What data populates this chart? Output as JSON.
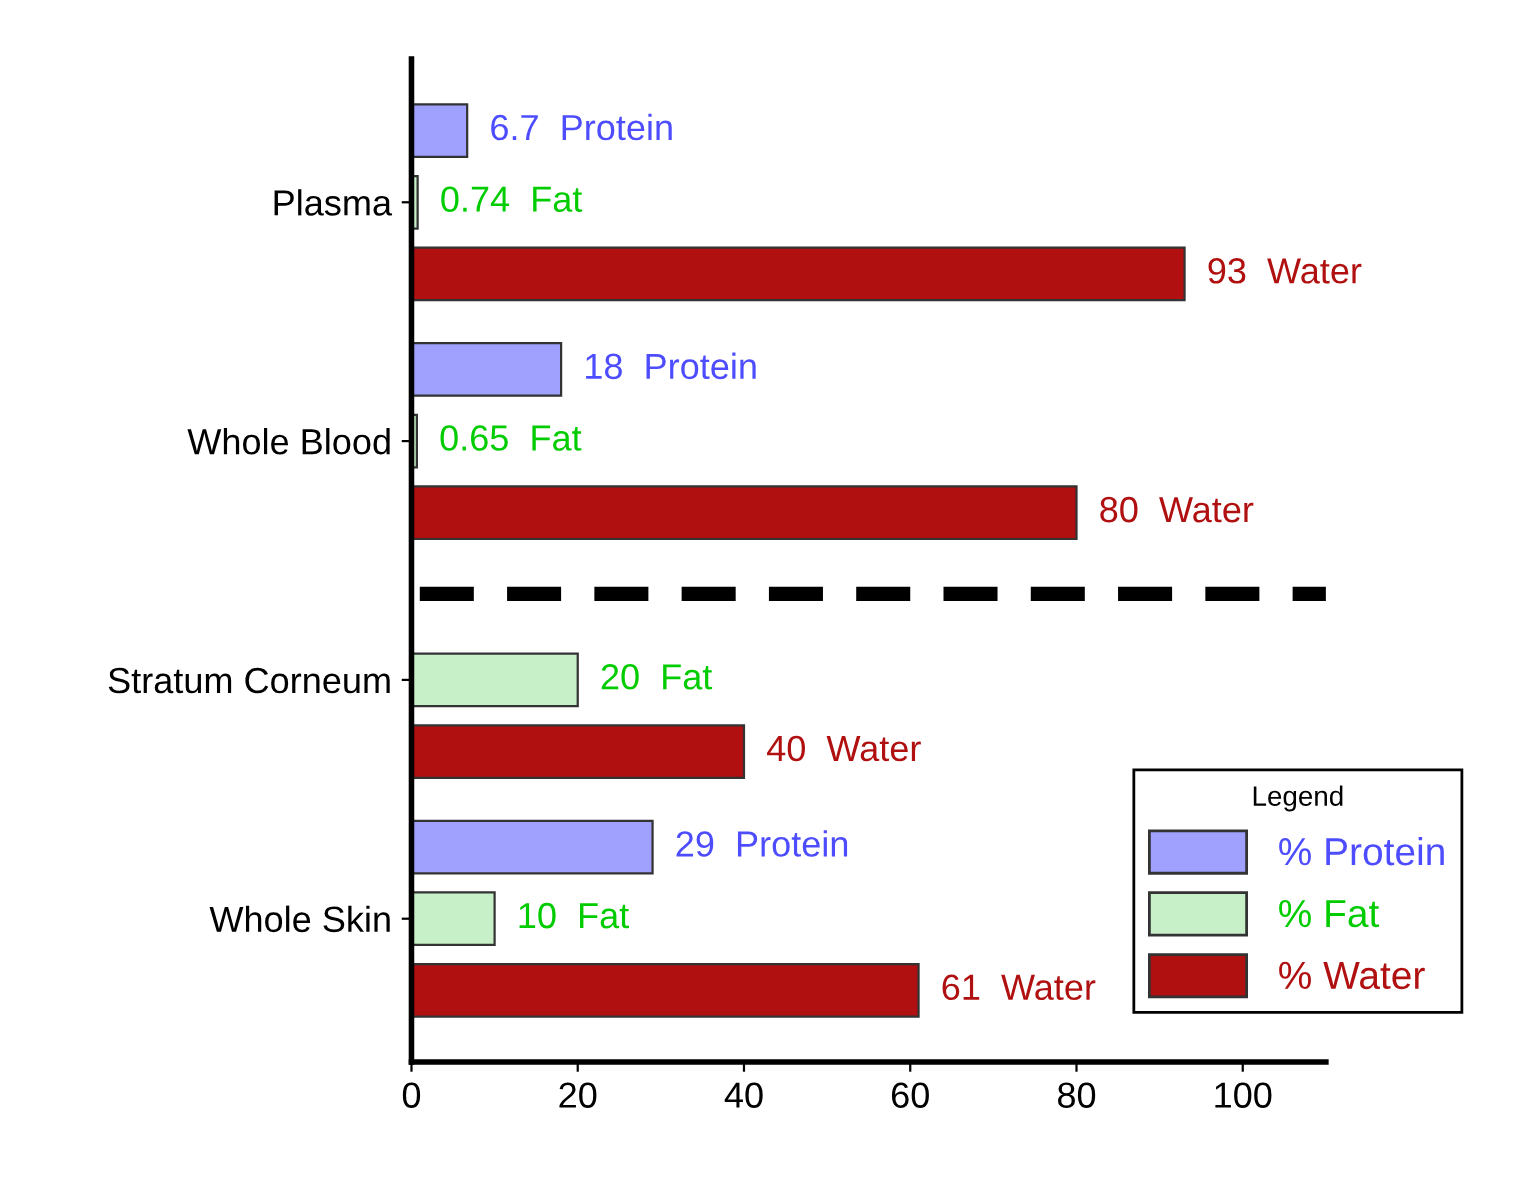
{
  "chart_data": {
    "type": "bar",
    "orientation": "horizontal",
    "categories": [
      "Plasma",
      "Whole Blood",
      "Stratum Corneum",
      "Whole Skin"
    ],
    "series": [
      {
        "name": "% Protein",
        "color": "#a0a0ff",
        "values": [
          6.7,
          18,
          null,
          29
        ],
        "value_labels": [
          "6.7  Protein",
          "18  Protein",
          null,
          "29  Protein"
        ]
      },
      {
        "name": "% Fat",
        "color": "#c8f0c8",
        "values": [
          0.74,
          0.65,
          20,
          10
        ],
        "value_labels": [
          "0.74  Fat",
          "0.65  Fat",
          "20  Fat",
          "10  Fat"
        ]
      },
      {
        "name": "% Water",
        "color": "#b01010",
        "values": [
          93,
          80,
          40,
          61
        ],
        "value_labels": [
          "93  Water",
          "80  Water",
          "40  Water",
          "61  Water"
        ]
      }
    ],
    "xlim": [
      0,
      110
    ],
    "xticks": [
      0,
      20,
      40,
      60,
      80,
      100
    ],
    "legend": "bottom right",
    "legend_title": "Legend",
    "grid": false
  }
}
